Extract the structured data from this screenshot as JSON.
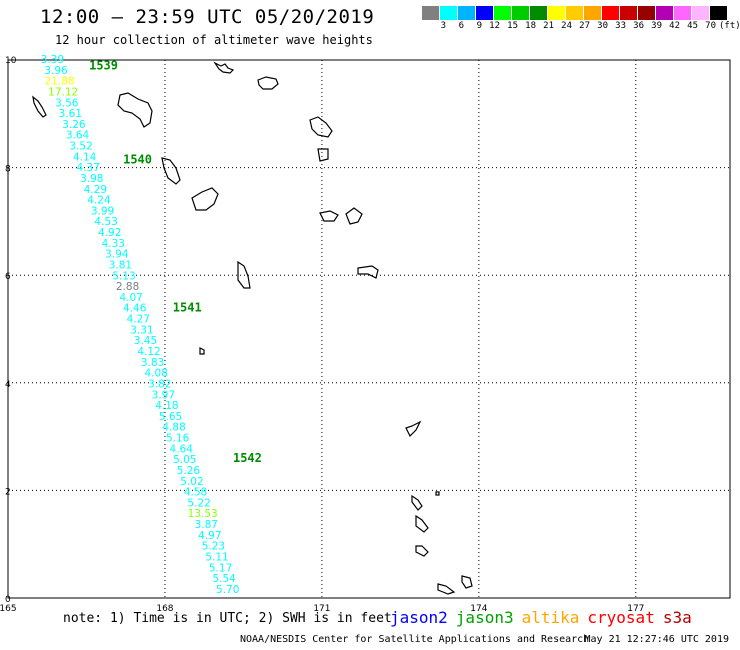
{
  "title": "12:00 – 23:59 UTC 05/20/2019",
  "subtitle": "12 hour collection of altimeter wave heights",
  "legend": {
    "colors": [
      "#808080",
      "#00ffff",
      "#00b4ff",
      "#0000ff",
      "#00ff00",
      "#00cc00",
      "#008c00",
      "#ffff00",
      "#ffcc00",
      "#ffa500",
      "#ff0000",
      "#c80000",
      "#960000",
      "#b400b4",
      "#ff66ff",
      "#ffb4ff",
      "#000000"
    ],
    "labels": [
      "3",
      "6",
      "9",
      "12",
      "15",
      "18",
      "21",
      "24",
      "27",
      "30",
      "33",
      "36",
      "39",
      "42",
      "45",
      "70"
    ],
    "unit": "(ft)"
  },
  "axes": {
    "x_ticks": [
      "165",
      "168",
      "171",
      "174",
      "177"
    ],
    "y_ticks": [
      "0",
      "2",
      "4",
      "6",
      "8",
      "10"
    ],
    "xlim": [
      165,
      178.8
    ],
    "ylim": [
      0,
      10
    ]
  },
  "track": {
    "x_start": 165.85,
    "y_start": 10.0,
    "x_end": 169.2,
    "y_end": 0.15,
    "heights": [
      "3.39",
      "3.96",
      "21.88",
      "17.12",
      "3.56",
      "3.61",
      "3.26",
      "3.64",
      "3.52",
      "4.14",
      "4.37",
      "3.98",
      "4.29",
      "4.24",
      "3.99",
      "4.53",
      "4.92",
      "4.33",
      "3.94",
      "3.81",
      "5.13",
      "2.88",
      "4.07",
      "4.46",
      "4.27",
      "3.31",
      "3.45",
      "4.12",
      "3.83",
      "4.08",
      "3.82",
      "3.97",
      "4.18",
      "5.65",
      "4.88",
      "5.16",
      "4.64",
      "5.05",
      "5.26",
      "5.02",
      "4.58",
      "5.22",
      "13.53",
      "3.87",
      "4.97",
      "5.23",
      "5.11",
      "5.17",
      "5.54",
      "5.70"
    ],
    "colors": [
      "#00ffff",
      "#00ffff",
      "#ffff00",
      "#8cff00",
      "#00ffff",
      "#00ffff",
      "#00ffff",
      "#00ffff",
      "#00ffff",
      "#00ffff",
      "#00ffff",
      "#00ffff",
      "#00ffff",
      "#00ffff",
      "#00ffff",
      "#00ffff",
      "#00ffff",
      "#00ffff",
      "#00ffff",
      "#00ffff",
      "#00ffff",
      "#808080",
      "#00ffff",
      "#00ffff",
      "#00ffff",
      "#00ffff",
      "#00ffff",
      "#00ffff",
      "#00ffff",
      "#00ffff",
      "#00ffff",
      "#00ffff",
      "#00ffff",
      "#00ffff",
      "#00ffff",
      "#00ffff",
      "#00ffff",
      "#00ffff",
      "#00ffff",
      "#00ffff",
      "#00ffff",
      "#00ffff",
      "#8cff00",
      "#00ffff",
      "#00ffff",
      "#00ffff",
      "#00ffff",
      "#00ffff",
      "#00ffff",
      "#00ffff"
    ]
  },
  "time_labels": [
    {
      "text": "1539",
      "x": 166.55,
      "y": 9.9
    },
    {
      "text": "1540",
      "x": 167.2,
      "y": 8.15
    },
    {
      "text": "1541",
      "x": 168.15,
      "y": 5.4
    },
    {
      "text": "1542",
      "x": 169.3,
      "y": 2.6
    }
  ],
  "time_label_color": "#008c00",
  "note": "note: 1) Time is in UTC; 2) SWH is in feet",
  "satellites": [
    {
      "name": "jason2",
      "color": "#0000ff"
    },
    {
      "name": "jason3",
      "color": "#00a000"
    },
    {
      "name": "altika",
      "color": "#ffa500"
    },
    {
      "name": "cryosat",
      "color": "#ff0000"
    },
    {
      "name": "s3a",
      "color": "#b40000"
    }
  ],
  "credit": "NOAA/NESDIS Center for Satellite Applications and Research",
  "timestamp": "May 21 12:27:46 UTC 2019"
}
